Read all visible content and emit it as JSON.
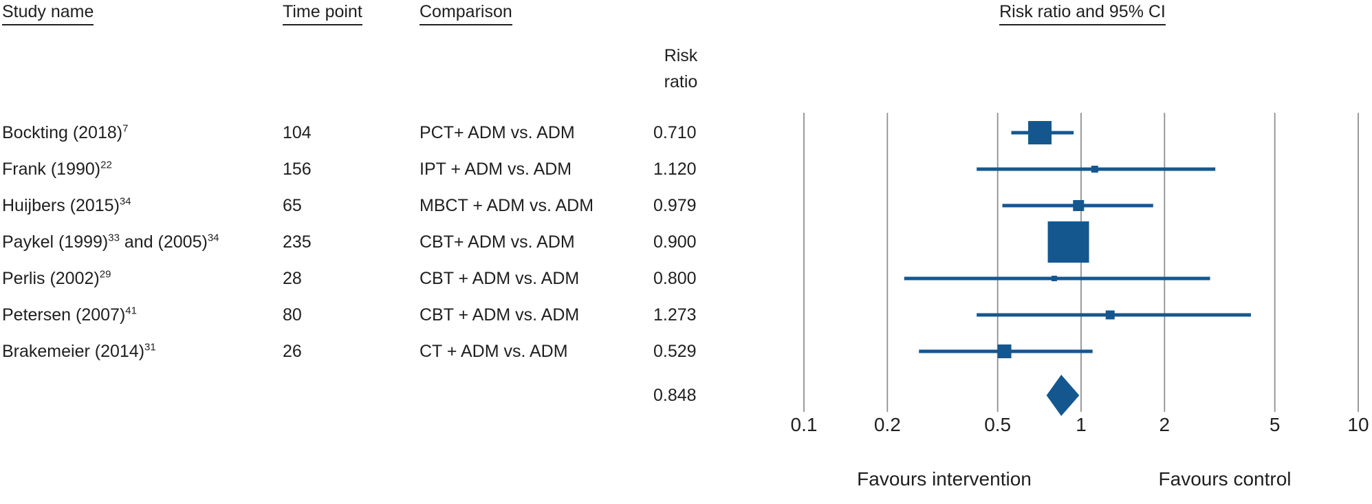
{
  "table": {
    "headers": {
      "study": "Study name",
      "time": "Time point",
      "comparison": "Comparison",
      "risk_ratio": "Risk\nratio"
    },
    "rows": [
      {
        "study": [
          {
            "t": "Bockting (2018)",
            "s": "7"
          }
        ],
        "time": "104",
        "comparison": "PCT+ ADM vs. ADM",
        "risk_ratio": "0.710"
      },
      {
        "study": [
          {
            "t": "Frank (1990)",
            "s": "22"
          }
        ],
        "time": "156",
        "comparison": "IPT + ADM vs. ADM",
        "risk_ratio": "1.120"
      },
      {
        "study": [
          {
            "t": "Huijbers (2015)",
            "s": "34"
          }
        ],
        "time": "65",
        "comparison": "MBCT + ADM vs. ADM",
        "risk_ratio": "0.979"
      },
      {
        "study": [
          {
            "t": "Paykel (1999)",
            "s": "33"
          },
          {
            "t": " and (2005)",
            "s": "34"
          }
        ],
        "time": "235",
        "comparison": "CBT+ ADM vs. ADM",
        "risk_ratio": "0.900"
      },
      {
        "study": [
          {
            "t": "Perlis (2002)",
            "s": "29"
          }
        ],
        "time": "28",
        "comparison": "CBT + ADM vs. ADM",
        "risk_ratio": "0.800"
      },
      {
        "study": [
          {
            "t": "Petersen (2007)",
            "s": "41"
          }
        ],
        "time": "80",
        "comparison": "CBT + ADM vs. ADM",
        "risk_ratio": "1.273"
      },
      {
        "study": [
          {
            "t": "Brakemeier (2014)",
            "s": "31"
          }
        ],
        "time": "26",
        "comparison": "CT + ADM vs. ADM",
        "risk_ratio": "0.529"
      }
    ],
    "summary_risk_ratio": "0.848"
  },
  "chart_data": {
    "type": "forest",
    "title": "Risk ratio and 95% CI",
    "x_axis": {
      "scale": "log10",
      "range": [
        0.1,
        10
      ],
      "ticks": [
        0.1,
        0.2,
        0.5,
        1,
        2,
        5,
        10
      ],
      "tick_labels": [
        "0.1",
        "0.2",
        "0.5",
        "1",
        "2",
        "5",
        "10"
      ],
      "grid": true
    },
    "footer_labels": {
      "left": "Favours intervention",
      "right": "Favours control"
    },
    "studies": [
      {
        "name": "Bockting (2018)",
        "rr": 0.71,
        "ci_low": 0.56,
        "ci_high": 0.94,
        "marker_size": 34
      },
      {
        "name": "Frank (1990)",
        "rr": 1.12,
        "ci_low": 0.42,
        "ci_high": 3.05,
        "marker_size": 10
      },
      {
        "name": "Huijbers (2015)",
        "rr": 0.979,
        "ci_low": 0.52,
        "ci_high": 1.82,
        "marker_size": 16
      },
      {
        "name": "Paykel (1999) and (2005)",
        "rr": 0.9,
        "ci_low": 0.77,
        "ci_high": 1.06,
        "marker_size": 60
      },
      {
        "name": "Perlis (2002)",
        "rr": 0.8,
        "ci_low": 0.23,
        "ci_high": 2.92,
        "marker_size": 8
      },
      {
        "name": "Petersen (2007)",
        "rr": 1.273,
        "ci_low": 0.42,
        "ci_high": 4.1,
        "marker_size": 13
      },
      {
        "name": "Brakemeier (2014)",
        "rr": 0.529,
        "ci_low": 0.26,
        "ci_high": 1.1,
        "marker_size": 20
      }
    ],
    "summary": {
      "rr": 0.848,
      "ci_low": 0.75,
      "ci_high": 0.985
    },
    "colors": {
      "marker_blue": "#14578f",
      "gridline_gray": "#8f8f8f",
      "text": "#1f1f1f"
    }
  }
}
